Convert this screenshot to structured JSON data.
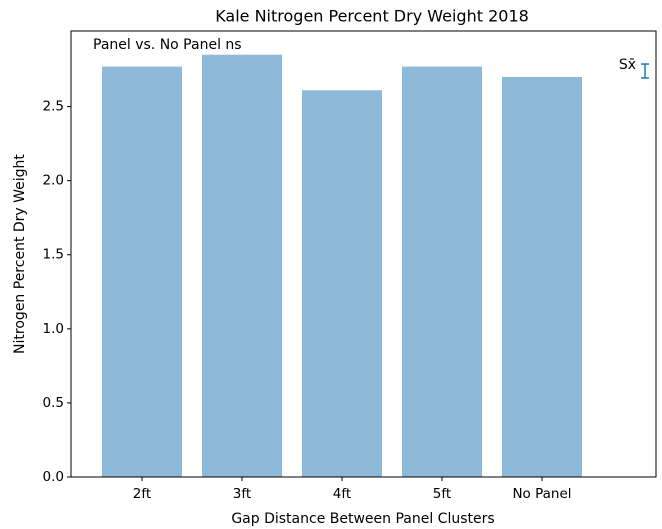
{
  "chart_data": {
    "type": "bar",
    "title": "Kale Nitrogen Percent Dry Weight 2018",
    "xlabel": "Gap Distance Between Panel Clusters",
    "ylabel": "Nitrogen Percent Dry Weight",
    "annotation": "Panel vs. No Panel ns",
    "categories": [
      "2ft",
      "3ft",
      "4ft",
      "5ft",
      "No Panel"
    ],
    "values": [
      2.77,
      2.85,
      2.61,
      2.77,
      2.7
    ],
    "color": "#8fb9d9",
    "xlim": [
      -0.71,
      5.14
    ],
    "ylim": [
      0,
      3.01
    ],
    "yticks": [
      {
        "value": 0,
        "label": "0.0"
      },
      {
        "value": 0.5,
        "label": "0.5"
      },
      {
        "value": 1,
        "label": "1.0"
      },
      {
        "value": 1.5,
        "label": "1.5"
      },
      {
        "value": 2,
        "label": "2.0"
      },
      {
        "value": 2.5,
        "label": "2.5"
      }
    ],
    "sem_marker": {
      "label": "Sx̄",
      "x": 5.03,
      "y": 2.74,
      "error": 0.047,
      "color": "#1f77b4"
    },
    "grid": false
  }
}
